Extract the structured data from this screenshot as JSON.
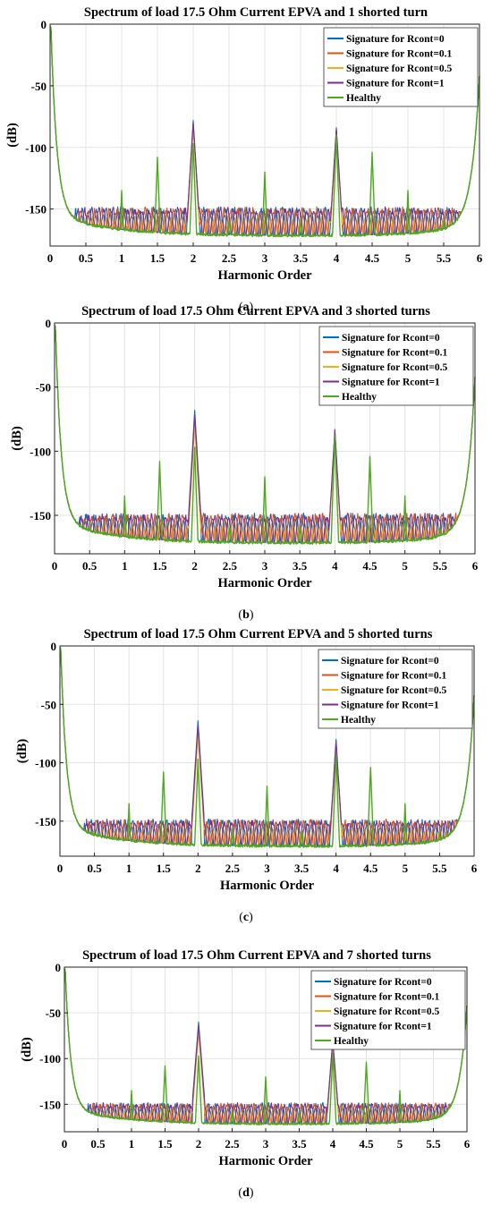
{
  "chart_data": [
    {
      "panel": "a",
      "type": "line",
      "title": "Spectrum of load 17.5 Ohm Current EPVA and 1 shorted turn",
      "xlabel": "Harmonic Order",
      "ylabel": "(dB)",
      "xlim": [
        0,
        6
      ],
      "ylim": [
        -180,
        0
      ],
      "xticks": [
        "0",
        "0.5",
        "1",
        "1.5",
        "2",
        "2.5",
        "3",
        "3.5",
        "4",
        "4.5",
        "5",
        "5.5",
        "6"
      ],
      "yticks": [
        "0",
        "-50",
        "-100",
        "-150"
      ],
      "grid": true,
      "legend_position": "top-right",
      "series": [
        {
          "name": "Signature for Rcont=0",
          "color": "#0072BD",
          "peaks": [
            [
              2,
              -78
            ],
            [
              4,
              -85
            ]
          ]
        },
        {
          "name": "Signature for Rcont=0.1",
          "color": "#D95319",
          "peaks": [
            [
              2,
              -82
            ],
            [
              4,
              -87
            ]
          ]
        },
        {
          "name": "Signature for Rcont=0.5",
          "color": "#EDB120",
          "peaks": [
            [
              2,
              -84
            ],
            [
              4,
              -88
            ]
          ]
        },
        {
          "name": "Signature for Rcont=1",
          "color": "#7E2F8E",
          "peaks": [
            [
              2,
              -80
            ],
            [
              4,
              -84
            ]
          ]
        },
        {
          "name": "Healthy",
          "color": "#4DAA1E",
          "peaks": [
            [
              1,
              -135
            ],
            [
              1.5,
              -108
            ],
            [
              2,
              -97
            ],
            [
              3,
              -120
            ],
            [
              4,
              -90
            ],
            [
              4.5,
              -104
            ],
            [
              5,
              -135
            ]
          ]
        }
      ],
      "caption": "a"
    },
    {
      "panel": "b",
      "type": "line",
      "title": "Spectrum of load 17.5 Ohm Current EPVA and 3 shorted turns",
      "xlabel": "Harmonic Order",
      "ylabel": "(dB)",
      "xlim": [
        0,
        6
      ],
      "ylim": [
        -180,
        0
      ],
      "xticks": [
        "0",
        "0.5",
        "1",
        "1.5",
        "2",
        "2.5",
        "3",
        "3.5",
        "4",
        "4.5",
        "5",
        "5.5",
        "6"
      ],
      "yticks": [
        "0",
        "-50",
        "-100",
        "-150"
      ],
      "grid": true,
      "legend_position": "top-right",
      "series": [
        {
          "name": "Signature for Rcont=0",
          "color": "#0072BD",
          "peaks": [
            [
              2,
              -68
            ],
            [
              4,
              -84
            ]
          ]
        },
        {
          "name": "Signature for Rcont=0.1",
          "color": "#D95319",
          "peaks": [
            [
              2,
              -74
            ],
            [
              4,
              -86
            ]
          ]
        },
        {
          "name": "Signature for Rcont=0.5",
          "color": "#EDB120",
          "peaks": [
            [
              2,
              -80
            ],
            [
              4,
              -87
            ]
          ]
        },
        {
          "name": "Signature for Rcont=1",
          "color": "#7E2F8E",
          "peaks": [
            [
              2,
              -72
            ],
            [
              4,
              -83
            ]
          ]
        },
        {
          "name": "Healthy",
          "color": "#4DAA1E",
          "peaks": [
            [
              1,
              -135
            ],
            [
              1.5,
              -108
            ],
            [
              2,
              -97
            ],
            [
              3,
              -120
            ],
            [
              4,
              -88
            ],
            [
              4.5,
              -104
            ],
            [
              5,
              -135
            ]
          ]
        }
      ],
      "caption": "b"
    },
    {
      "panel": "c",
      "type": "line",
      "title": "Spectrum of load 17.5 Ohm Current EPVA and 5 shorted turns",
      "xlabel": "Harmonic Order",
      "ylabel": "(dB)",
      "xlim": [
        0,
        6
      ],
      "ylim": [
        -180,
        0
      ],
      "xticks": [
        "0",
        "0.5",
        "1",
        "1.5",
        "2",
        "2.5",
        "3",
        "3.5",
        "4",
        "4.5",
        "5",
        "5.5",
        "6"
      ],
      "yticks": [
        "0",
        "-50",
        "-100",
        "-150"
      ],
      "grid": true,
      "legend_position": "top-right",
      "series": [
        {
          "name": "Signature for Rcont=0",
          "color": "#0072BD",
          "peaks": [
            [
              2,
              -64
            ],
            [
              4,
              -80
            ]
          ]
        },
        {
          "name": "Signature for Rcont=0.1",
          "color": "#D95319",
          "peaks": [
            [
              2,
              -70
            ],
            [
              4,
              -84
            ]
          ]
        },
        {
          "name": "Signature for Rcont=0.5",
          "color": "#EDB120",
          "peaks": [
            [
              2,
              -76
            ],
            [
              4,
              -86
            ]
          ]
        },
        {
          "name": "Signature for Rcont=1",
          "color": "#7E2F8E",
          "peaks": [
            [
              2,
              -68
            ],
            [
              4,
              -82
            ]
          ]
        },
        {
          "name": "Healthy",
          "color": "#4DAA1E",
          "peaks": [
            [
              1,
              -135
            ],
            [
              1.5,
              -108
            ],
            [
              2,
              -97
            ],
            [
              3,
              -120
            ],
            [
              4,
              -93
            ],
            [
              4.5,
              -104
            ],
            [
              5,
              -135
            ]
          ]
        }
      ],
      "caption": "c"
    },
    {
      "panel": "d",
      "type": "line",
      "title": "Spectrum of load 17.5 Ohm Current EPVA and 7 shorted turns",
      "xlabel": "Harmonic Order",
      "ylabel": "(dB)",
      "xlim": [
        0,
        6
      ],
      "ylim": [
        -180,
        0
      ],
      "xticks": [
        "0",
        "0.5",
        "1",
        "1.5",
        "2",
        "2.5",
        "3",
        "3.5",
        "4",
        "4.5",
        "5",
        "5.5",
        "6"
      ],
      "yticks": [
        "0",
        "-50",
        "-100",
        "-150"
      ],
      "grid": true,
      "legend_position": "top-right",
      "series": [
        {
          "name": "Signature for Rcont=0",
          "color": "#0072BD",
          "peaks": [
            [
              2,
              -60
            ],
            [
              4,
              -79
            ]
          ]
        },
        {
          "name": "Signature for Rcont=0.1",
          "color": "#D95319",
          "peaks": [
            [
              2,
              -66
            ],
            [
              4,
              -83
            ]
          ]
        },
        {
          "name": "Signature for Rcont=0.5",
          "color": "#EDB120",
          "peaks": [
            [
              2,
              -72
            ],
            [
              4,
              -85
            ]
          ]
        },
        {
          "name": "Signature for Rcont=1",
          "color": "#7E2F8E",
          "peaks": [
            [
              2,
              -64
            ],
            [
              4,
              -81
            ]
          ]
        },
        {
          "name": "Healthy",
          "color": "#4DAA1E",
          "peaks": [
            [
              1,
              -135
            ],
            [
              1.5,
              -108
            ],
            [
              2,
              -97
            ],
            [
              3,
              -120
            ],
            [
              4,
              -95
            ],
            [
              4.5,
              -104
            ],
            [
              5,
              -135
            ]
          ]
        }
      ],
      "caption": "d"
    }
  ]
}
